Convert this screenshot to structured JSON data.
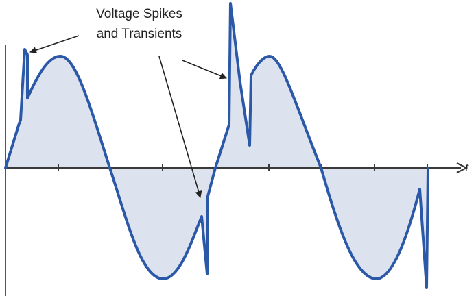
{
  "annotation": {
    "line1": "Voltage Spikes",
    "line2": "and Transients"
  },
  "axis": {
    "x_label": "t"
  },
  "colors": {
    "waveform_stroke": "#2c58a8",
    "waveform_fill": "#dce3ee",
    "axis": "#3a3a3a",
    "leader_lines": "#222222",
    "text": "#222222"
  }
}
